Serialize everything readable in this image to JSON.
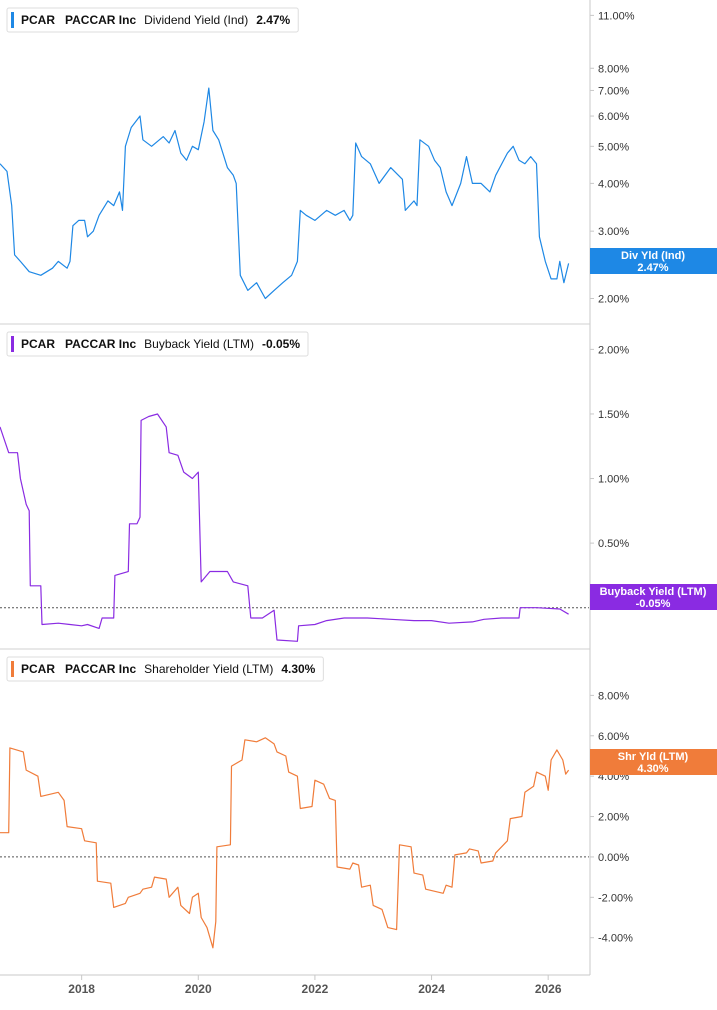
{
  "chart_data": [
    {
      "type": "line",
      "ticker": "PCAR",
      "company": "PACCAR Inc",
      "metric": "Dividend Yield (Ind)",
      "current_value": "2.47%",
      "badge_lines": [
        "Div Yld (Ind)",
        "2.47%"
      ],
      "color": "#1e88e5",
      "scale": "log",
      "ylim": [
        1.8,
        11.5
      ],
      "yticks": [
        {
          "v": 11,
          "label": "11.00%"
        },
        {
          "v": 8,
          "label": "8.00%"
        },
        {
          "v": 7,
          "label": "7.00%"
        },
        {
          "v": 6,
          "label": "6.00%"
        },
        {
          "v": 5,
          "label": "5.00%"
        },
        {
          "v": 4,
          "label": "4.00%"
        },
        {
          "v": 3,
          "label": "3.00%"
        },
        {
          "v": 2,
          "label": "2.00%"
        }
      ],
      "reference_line": null,
      "series": [
        {
          "x": 2016.6,
          "y": 4.5
        },
        {
          "x": 2016.72,
          "y": 4.3
        },
        {
          "x": 2016.8,
          "y": 3.5
        },
        {
          "x": 2016.85,
          "y": 2.6
        },
        {
          "x": 2016.95,
          "y": 2.5
        },
        {
          "x": 2017.1,
          "y": 2.35
        },
        {
          "x": 2017.3,
          "y": 2.3
        },
        {
          "x": 2017.5,
          "y": 2.4
        },
        {
          "x": 2017.6,
          "y": 2.5
        },
        {
          "x": 2017.75,
          "y": 2.4
        },
        {
          "x": 2017.8,
          "y": 2.5
        },
        {
          "x": 2017.85,
          "y": 3.1
        },
        {
          "x": 2017.95,
          "y": 3.2
        },
        {
          "x": 2018.05,
          "y": 3.2
        },
        {
          "x": 2018.1,
          "y": 2.9
        },
        {
          "x": 2018.2,
          "y": 3.0
        },
        {
          "x": 2018.3,
          "y": 3.3
        },
        {
          "x": 2018.45,
          "y": 3.6
        },
        {
          "x": 2018.55,
          "y": 3.5
        },
        {
          "x": 2018.65,
          "y": 3.8
        },
        {
          "x": 2018.7,
          "y": 3.4
        },
        {
          "x": 2018.75,
          "y": 5.0
        },
        {
          "x": 2018.85,
          "y": 5.6
        },
        {
          "x": 2019.0,
          "y": 6.0
        },
        {
          "x": 2019.05,
          "y": 5.2
        },
        {
          "x": 2019.2,
          "y": 5.0
        },
        {
          "x": 2019.4,
          "y": 5.3
        },
        {
          "x": 2019.5,
          "y": 5.1
        },
        {
          "x": 2019.6,
          "y": 5.5
        },
        {
          "x": 2019.7,
          "y": 4.8
        },
        {
          "x": 2019.8,
          "y": 4.6
        },
        {
          "x": 2019.9,
          "y": 5.0
        },
        {
          "x": 2020.0,
          "y": 4.9
        },
        {
          "x": 2020.1,
          "y": 5.8
        },
        {
          "x": 2020.18,
          "y": 7.1
        },
        {
          "x": 2020.25,
          "y": 5.5
        },
        {
          "x": 2020.35,
          "y": 5.2
        },
        {
          "x": 2020.5,
          "y": 4.4
        },
        {
          "x": 2020.6,
          "y": 4.2
        },
        {
          "x": 2020.65,
          "y": 4.0
        },
        {
          "x": 2020.72,
          "y": 2.3
        },
        {
          "x": 2020.85,
          "y": 2.1
        },
        {
          "x": 2021.0,
          "y": 2.2
        },
        {
          "x": 2021.15,
          "y": 2.0
        },
        {
          "x": 2021.3,
          "y": 2.1
        },
        {
          "x": 2021.45,
          "y": 2.2
        },
        {
          "x": 2021.6,
          "y": 2.3
        },
        {
          "x": 2021.7,
          "y": 2.5
        },
        {
          "x": 2021.75,
          "y": 3.4
        },
        {
          "x": 2021.85,
          "y": 3.3
        },
        {
          "x": 2022.0,
          "y": 3.2
        },
        {
          "x": 2022.2,
          "y": 3.4
        },
        {
          "x": 2022.35,
          "y": 3.3
        },
        {
          "x": 2022.5,
          "y": 3.4
        },
        {
          "x": 2022.6,
          "y": 3.2
        },
        {
          "x": 2022.65,
          "y": 3.3
        },
        {
          "x": 2022.7,
          "y": 5.1
        },
        {
          "x": 2022.8,
          "y": 4.7
        },
        {
          "x": 2022.95,
          "y": 4.5
        },
        {
          "x": 2023.1,
          "y": 4.0
        },
        {
          "x": 2023.3,
          "y": 4.4
        },
        {
          "x": 2023.5,
          "y": 4.1
        },
        {
          "x": 2023.55,
          "y": 3.4
        },
        {
          "x": 2023.7,
          "y": 3.6
        },
        {
          "x": 2023.75,
          "y": 3.5
        },
        {
          "x": 2023.8,
          "y": 5.2
        },
        {
          "x": 2023.95,
          "y": 5.0
        },
        {
          "x": 2024.05,
          "y": 4.6
        },
        {
          "x": 2024.15,
          "y": 4.4
        },
        {
          "x": 2024.25,
          "y": 3.8
        },
        {
          "x": 2024.35,
          "y": 3.5
        },
        {
          "x": 2024.5,
          "y": 4.0
        },
        {
          "x": 2024.6,
          "y": 4.7
        },
        {
          "x": 2024.7,
          "y": 4.0
        },
        {
          "x": 2024.85,
          "y": 4.0
        },
        {
          "x": 2025.0,
          "y": 3.8
        },
        {
          "x": 2025.1,
          "y": 4.2
        },
        {
          "x": 2025.3,
          "y": 4.8
        },
        {
          "x": 2025.4,
          "y": 5.0
        },
        {
          "x": 2025.5,
          "y": 4.6
        },
        {
          "x": 2025.6,
          "y": 4.5
        },
        {
          "x": 2025.7,
          "y": 4.7
        },
        {
          "x": 2025.8,
          "y": 4.5
        },
        {
          "x": 2025.85,
          "y": 2.9
        },
        {
          "x": 2025.95,
          "y": 2.5
        },
        {
          "x": 2026.05,
          "y": 2.25
        },
        {
          "x": 2026.15,
          "y": 2.25
        },
        {
          "x": 2026.2,
          "y": 2.5
        },
        {
          "x": 2026.27,
          "y": 2.2
        },
        {
          "x": 2026.35,
          "y": 2.47
        }
      ]
    },
    {
      "type": "line",
      "ticker": "PCAR",
      "company": "PACCAR Inc",
      "metric": "Buyback Yield (LTM)",
      "current_value": "-0.05%",
      "badge_lines": [
        "Buyback Yield (LTM)",
        "-0.05%"
      ],
      "color": "#8a2be2",
      "scale": "linear",
      "ylim": [
        -0.25,
        2.15
      ],
      "yticks": [
        {
          "v": 2,
          "label": "2.00%"
        },
        {
          "v": 1.5,
          "label": "1.50%"
        },
        {
          "v": 1,
          "label": "1.00%"
        },
        {
          "v": 0.5,
          "label": "0.50%"
        }
      ],
      "reference_line": 0,
      "series": [
        {
          "x": 2016.6,
          "y": 1.4
        },
        {
          "x": 2016.75,
          "y": 1.2
        },
        {
          "x": 2016.9,
          "y": 1.2
        },
        {
          "x": 2016.95,
          "y": 1.0
        },
        {
          "x": 2017.05,
          "y": 0.8
        },
        {
          "x": 2017.1,
          "y": 0.75
        },
        {
          "x": 2017.12,
          "y": 0.17
        },
        {
          "x": 2017.3,
          "y": 0.17
        },
        {
          "x": 2017.32,
          "y": -0.13
        },
        {
          "x": 2017.6,
          "y": -0.12
        },
        {
          "x": 2017.8,
          "y": -0.13
        },
        {
          "x": 2018.0,
          "y": -0.14
        },
        {
          "x": 2018.1,
          "y": -0.13
        },
        {
          "x": 2018.3,
          "y": -0.16
        },
        {
          "x": 2018.35,
          "y": -0.08
        },
        {
          "x": 2018.55,
          "y": -0.08
        },
        {
          "x": 2018.57,
          "y": 0.25
        },
        {
          "x": 2018.8,
          "y": 0.28
        },
        {
          "x": 2018.82,
          "y": 0.65
        },
        {
          "x": 2018.95,
          "y": 0.65
        },
        {
          "x": 2019.0,
          "y": 0.7
        },
        {
          "x": 2019.02,
          "y": 1.45
        },
        {
          "x": 2019.15,
          "y": 1.48
        },
        {
          "x": 2019.3,
          "y": 1.5
        },
        {
          "x": 2019.45,
          "y": 1.4
        },
        {
          "x": 2019.5,
          "y": 1.2
        },
        {
          "x": 2019.65,
          "y": 1.18
        },
        {
          "x": 2019.75,
          "y": 1.05
        },
        {
          "x": 2019.9,
          "y": 1.0
        },
        {
          "x": 2020.0,
          "y": 1.05
        },
        {
          "x": 2020.05,
          "y": 0.2
        },
        {
          "x": 2020.2,
          "y": 0.28
        },
        {
          "x": 2020.5,
          "y": 0.28
        },
        {
          "x": 2020.6,
          "y": 0.2
        },
        {
          "x": 2020.85,
          "y": 0.17
        },
        {
          "x": 2020.9,
          "y": -0.08
        },
        {
          "x": 2021.1,
          "y": -0.08
        },
        {
          "x": 2021.3,
          "y": -0.02
        },
        {
          "x": 2021.35,
          "y": -0.25
        },
        {
          "x": 2021.7,
          "y": -0.26
        },
        {
          "x": 2021.72,
          "y": -0.14
        },
        {
          "x": 2022.0,
          "y": -0.13
        },
        {
          "x": 2022.2,
          "y": -0.1
        },
        {
          "x": 2022.5,
          "y": -0.08
        },
        {
          "x": 2022.9,
          "y": -0.08
        },
        {
          "x": 2023.3,
          "y": -0.09
        },
        {
          "x": 2023.7,
          "y": -0.1
        },
        {
          "x": 2024.0,
          "y": -0.1
        },
        {
          "x": 2024.3,
          "y": -0.12
        },
        {
          "x": 2024.7,
          "y": -0.11
        },
        {
          "x": 2024.9,
          "y": -0.09
        },
        {
          "x": 2025.2,
          "y": -0.08
        },
        {
          "x": 2025.5,
          "y": -0.08
        },
        {
          "x": 2025.52,
          "y": 0.0
        },
        {
          "x": 2025.8,
          "y": 0.0
        },
        {
          "x": 2026.2,
          "y": -0.01
        },
        {
          "x": 2026.35,
          "y": -0.05
        }
      ]
    },
    {
      "type": "line",
      "ticker": "PCAR",
      "company": "PACCAR Inc",
      "metric": "Shareholder Yield (LTM)",
      "current_value": "4.30%",
      "badge_lines": [
        "Shr Yld (LTM)",
        "4.30%"
      ],
      "color": "#f07c3a",
      "scale": "linear",
      "ylim": [
        -5.5,
        10.0
      ],
      "yticks": [
        {
          "v": 8,
          "label": "8.00%"
        },
        {
          "v": 6,
          "label": "6.00%"
        },
        {
          "v": 4,
          "label": "4.00%"
        },
        {
          "v": 2,
          "label": "2.00%"
        },
        {
          "v": 0,
          "label": "0.00%"
        },
        {
          "v": -2,
          "label": "-2.00%"
        },
        {
          "v": -4,
          "label": "-4.00%"
        }
      ],
      "reference_line": 0,
      "series": [
        {
          "x": 2016.6,
          "y": 1.2
        },
        {
          "x": 2016.75,
          "y": 1.2
        },
        {
          "x": 2016.77,
          "y": 5.4
        },
        {
          "x": 2017.0,
          "y": 5.2
        },
        {
          "x": 2017.05,
          "y": 4.3
        },
        {
          "x": 2017.25,
          "y": 4.0
        },
        {
          "x": 2017.3,
          "y": 3.0
        },
        {
          "x": 2017.6,
          "y": 3.2
        },
        {
          "x": 2017.7,
          "y": 2.8
        },
        {
          "x": 2017.75,
          "y": 1.5
        },
        {
          "x": 2018.0,
          "y": 1.4
        },
        {
          "x": 2018.05,
          "y": 0.8
        },
        {
          "x": 2018.25,
          "y": 0.7
        },
        {
          "x": 2018.27,
          "y": -1.2
        },
        {
          "x": 2018.5,
          "y": -1.3
        },
        {
          "x": 2018.55,
          "y": -2.5
        },
        {
          "x": 2018.75,
          "y": -2.3
        },
        {
          "x": 2018.8,
          "y": -2.0
        },
        {
          "x": 2019.0,
          "y": -1.8
        },
        {
          "x": 2019.05,
          "y": -1.6
        },
        {
          "x": 2019.2,
          "y": -1.5
        },
        {
          "x": 2019.25,
          "y": -1.0
        },
        {
          "x": 2019.45,
          "y": -1.1
        },
        {
          "x": 2019.5,
          "y": -2.0
        },
        {
          "x": 2019.65,
          "y": -1.5
        },
        {
          "x": 2019.7,
          "y": -2.4
        },
        {
          "x": 2019.85,
          "y": -2.8
        },
        {
          "x": 2019.9,
          "y": -2.0
        },
        {
          "x": 2020.0,
          "y": -1.8
        },
        {
          "x": 2020.05,
          "y": -3.0
        },
        {
          "x": 2020.15,
          "y": -3.5
        },
        {
          "x": 2020.25,
          "y": -4.5
        },
        {
          "x": 2020.3,
          "y": -3.2
        },
        {
          "x": 2020.32,
          "y": 0.5
        },
        {
          "x": 2020.55,
          "y": 0.6
        },
        {
          "x": 2020.57,
          "y": 4.5
        },
        {
          "x": 2020.75,
          "y": 4.8
        },
        {
          "x": 2020.8,
          "y": 5.8
        },
        {
          "x": 2021.0,
          "y": 5.7
        },
        {
          "x": 2021.15,
          "y": 5.9
        },
        {
          "x": 2021.3,
          "y": 5.6
        },
        {
          "x": 2021.35,
          "y": 5.2
        },
        {
          "x": 2021.5,
          "y": 5.0
        },
        {
          "x": 2021.55,
          "y": 4.2
        },
        {
          "x": 2021.7,
          "y": 4.0
        },
        {
          "x": 2021.75,
          "y": 2.4
        },
        {
          "x": 2021.95,
          "y": 2.5
        },
        {
          "x": 2022.0,
          "y": 3.8
        },
        {
          "x": 2022.15,
          "y": 3.6
        },
        {
          "x": 2022.25,
          "y": 2.9
        },
        {
          "x": 2022.35,
          "y": 2.8
        },
        {
          "x": 2022.38,
          "y": -0.5
        },
        {
          "x": 2022.6,
          "y": -0.6
        },
        {
          "x": 2022.65,
          "y": -0.3
        },
        {
          "x": 2022.75,
          "y": -0.4
        },
        {
          "x": 2022.8,
          "y": -1.5
        },
        {
          "x": 2022.95,
          "y": -1.4
        },
        {
          "x": 2023.0,
          "y": -2.4
        },
        {
          "x": 2023.15,
          "y": -2.6
        },
        {
          "x": 2023.25,
          "y": -3.5
        },
        {
          "x": 2023.4,
          "y": -3.6
        },
        {
          "x": 2023.45,
          "y": 0.6
        },
        {
          "x": 2023.65,
          "y": 0.5
        },
        {
          "x": 2023.7,
          "y": -0.8
        },
        {
          "x": 2023.85,
          "y": -0.9
        },
        {
          "x": 2023.9,
          "y": -1.6
        },
        {
          "x": 2024.2,
          "y": -1.8
        },
        {
          "x": 2024.25,
          "y": -1.4
        },
        {
          "x": 2024.35,
          "y": -1.5
        },
        {
          "x": 2024.4,
          "y": 0.1
        },
        {
          "x": 2024.6,
          "y": 0.2
        },
        {
          "x": 2024.65,
          "y": 0.4
        },
        {
          "x": 2024.8,
          "y": 0.3
        },
        {
          "x": 2024.85,
          "y": -0.3
        },
        {
          "x": 2025.05,
          "y": -0.2
        },
        {
          "x": 2025.1,
          "y": 0.2
        },
        {
          "x": 2025.3,
          "y": 0.8
        },
        {
          "x": 2025.35,
          "y": 1.9
        },
        {
          "x": 2025.55,
          "y": 2.0
        },
        {
          "x": 2025.6,
          "y": 3.2
        },
        {
          "x": 2025.75,
          "y": 3.5
        },
        {
          "x": 2025.8,
          "y": 4.2
        },
        {
          "x": 2025.95,
          "y": 4.0
        },
        {
          "x": 2026.0,
          "y": 3.3
        },
        {
          "x": 2026.05,
          "y": 4.8
        },
        {
          "x": 2026.15,
          "y": 5.3
        },
        {
          "x": 2026.25,
          "y": 4.8
        },
        {
          "x": 2026.3,
          "y": 4.1
        },
        {
          "x": 2026.35,
          "y": 4.3
        }
      ]
    }
  ],
  "x_axis": {
    "ticks": [
      {
        "v": 2018,
        "label": "2018"
      },
      {
        "v": 2020,
        "label": "2020"
      },
      {
        "v": 2022,
        "label": "2022"
      },
      {
        "v": 2024,
        "label": "2024"
      },
      {
        "v": 2026,
        "label": "2026"
      }
    ],
    "range": [
      2016.6,
      2026.7
    ]
  }
}
